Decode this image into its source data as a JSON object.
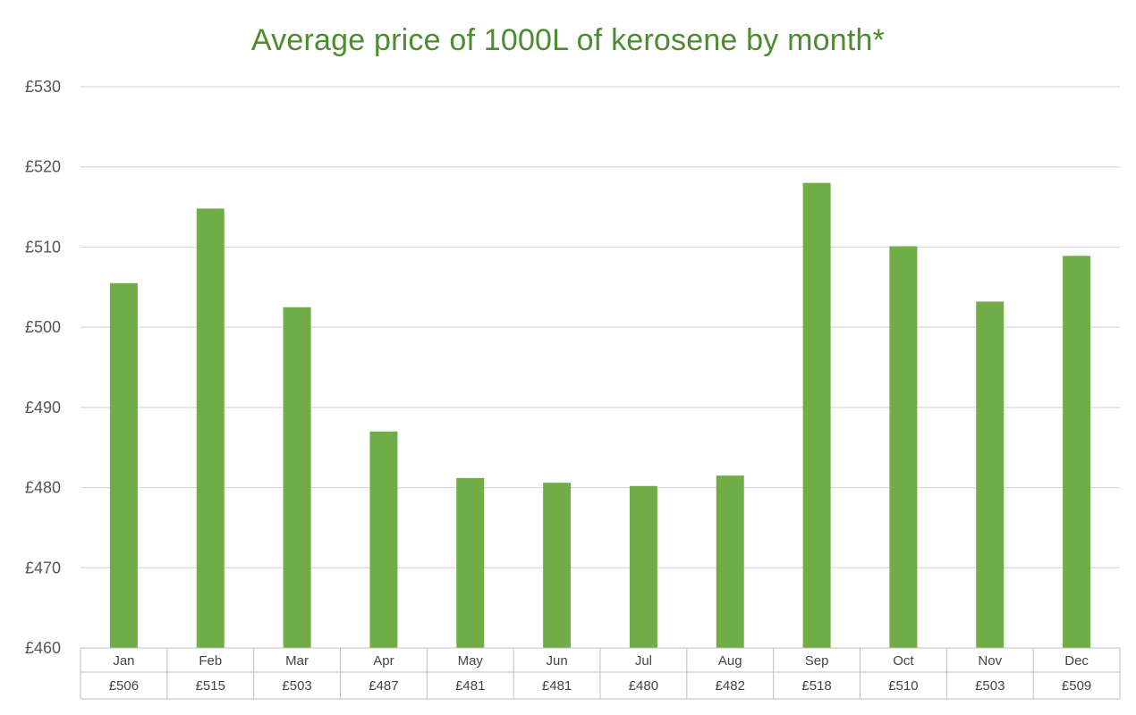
{
  "chart_data": {
    "type": "bar",
    "title": "Average price of 1000L of kerosene by month*",
    "categories": [
      "Jan",
      "Feb",
      "Mar",
      "Apr",
      "May",
      "Jun",
      "Jul",
      "Aug",
      "Sep",
      "Oct",
      "Nov",
      "Dec"
    ],
    "values": [
      505.5,
      514.8,
      502.5,
      487.0,
      481.2,
      480.6,
      480.2,
      481.5,
      518.0,
      510.1,
      503.2,
      508.9
    ],
    "value_labels": [
      "£506",
      "£515",
      "£503",
      "£487",
      "£481",
      "£481",
      "£480",
      "£482",
      "£518",
      "£510",
      "£503",
      "£509"
    ],
    "ylim": [
      460,
      530
    ],
    "yticks": [
      "£460",
      "£470",
      "£480",
      "£490",
      "£500",
      "£510",
      "£520",
      "£530"
    ],
    "ytick_values": [
      460,
      470,
      480,
      490,
      500,
      510,
      520,
      530
    ],
    "grid": true,
    "data_table": true,
    "bar_color": "#70ad47",
    "title_color": "#4d8b2f"
  }
}
